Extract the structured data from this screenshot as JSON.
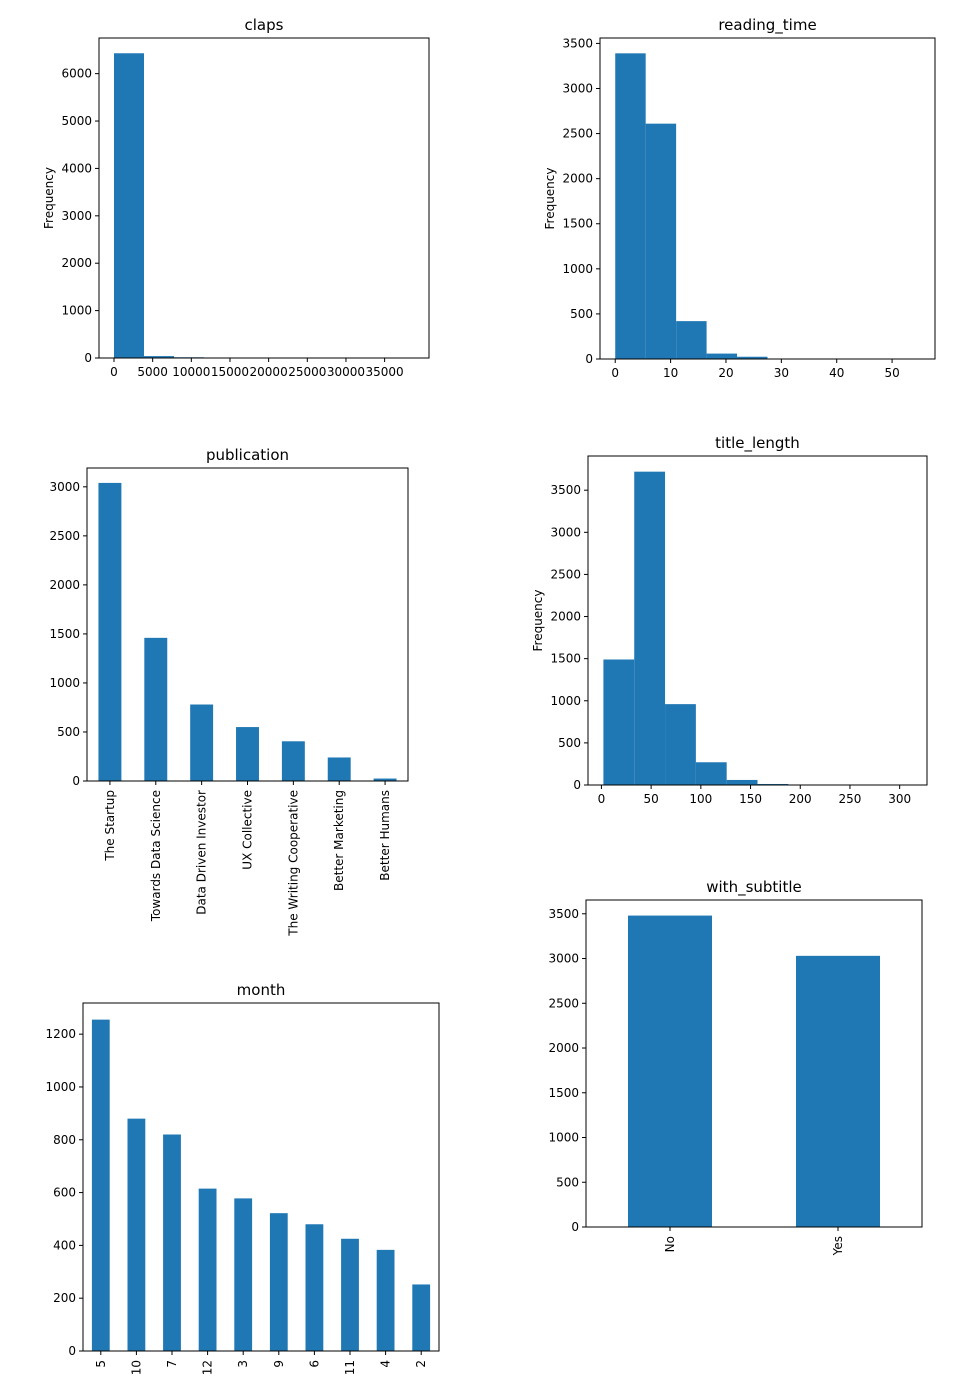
{
  "colors": {
    "bar": "#1f77b4",
    "axis": "#000000",
    "background": "#ffffff"
  },
  "chart_data": [
    {
      "id": "claps",
      "type": "bar",
      "title": "claps",
      "ylabel": "Frequency",
      "histogram": true,
      "bin_edges": [
        0,
        3880,
        7760,
        11640,
        15520,
        19400,
        23280,
        27160,
        31040,
        34920,
        38800
      ],
      "values": [
        6430,
        40,
        15,
        5,
        2,
        1,
        1,
        1,
        0,
        1
      ],
      "xlim": [
        -1940,
        40740
      ],
      "ylim": [
        0,
        6752
      ],
      "xticks": [
        0,
        5000,
        10000,
        15000,
        20000,
        25000,
        30000,
        35000
      ],
      "yticks": [
        0,
        1000,
        2000,
        3000,
        4000,
        5000,
        6000
      ]
    },
    {
      "id": "reading_time",
      "type": "bar",
      "title": "reading_time",
      "ylabel": "Frequency",
      "histogram": true,
      "bin_edges": [
        0,
        5.5,
        11,
        16.5,
        22,
        27.5,
        33,
        38.5,
        44,
        49.5,
        55
      ],
      "values": [
        3390,
        2610,
        420,
        60,
        25,
        5,
        2,
        1,
        1,
        1
      ],
      "xlim": [
        -2.75,
        57.75
      ],
      "ylim": [
        0,
        3560
      ],
      "xticks": [
        0,
        10,
        20,
        30,
        40,
        50
      ],
      "yticks": [
        0,
        500,
        1000,
        1500,
        2000,
        2500,
        3000,
        3500
      ]
    },
    {
      "id": "publication",
      "type": "bar",
      "title": "publication",
      "ylabel": "",
      "categories": [
        "The Startup",
        "Towards Data Science",
        "Data Driven Investor",
        "UX Collective",
        "The Writing Cooperative",
        "Better Marketing",
        "Better Humans"
      ],
      "values": [
        3040,
        1460,
        780,
        550,
        405,
        240,
        25
      ],
      "ylim": [
        0,
        3192
      ],
      "yticks": [
        0,
        500,
        1000,
        1500,
        2000,
        2500,
        3000
      ]
    },
    {
      "id": "title_length",
      "type": "bar",
      "title": "title_length",
      "ylabel": "Frequency",
      "histogram": true,
      "bin_edges": [
        2,
        33,
        64,
        95,
        126,
        157,
        188,
        219,
        250,
        281,
        312
      ],
      "values": [
        1490,
        3720,
        960,
        270,
        60,
        12,
        4,
        2,
        1,
        1
      ],
      "xlim": [
        -13.5,
        327.5
      ],
      "ylim": [
        0,
        3906
      ],
      "xticks": [
        0,
        50,
        100,
        150,
        200,
        250,
        300
      ],
      "yticks": [
        0,
        500,
        1000,
        1500,
        2000,
        2500,
        3000,
        3500
      ]
    },
    {
      "id": "with_subtitle",
      "type": "bar",
      "title": "with_subtitle",
      "ylabel": "",
      "categories": [
        "No",
        "Yes"
      ],
      "values": [
        3480,
        3030
      ],
      "ylim": [
        0,
        3654
      ],
      "yticks": [
        0,
        500,
        1000,
        1500,
        2000,
        2500,
        3000,
        3500
      ]
    },
    {
      "id": "month",
      "type": "bar",
      "title": "month",
      "ylabel": "",
      "categories": [
        "5",
        "10",
        "7",
        "12",
        "3",
        "9",
        "6",
        "11",
        "4",
        "2"
      ],
      "values": [
        1255,
        880,
        820,
        615,
        578,
        522,
        480,
        425,
        383,
        252
      ],
      "ylim": [
        0,
        1318
      ],
      "yticks": [
        0,
        200,
        400,
        600,
        800,
        1000,
        1200
      ]
    }
  ]
}
